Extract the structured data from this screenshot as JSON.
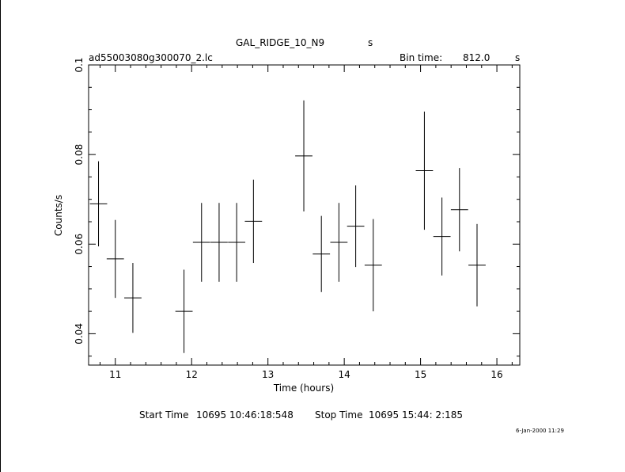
{
  "header": {
    "title": "GAL_RIDGE_10_N9",
    "title_unit": "s",
    "filename": "ad55003080g300070_2.lc",
    "bin_label": "Bin time:",
    "bin_value": "812.0",
    "bin_unit": "s"
  },
  "footer": {
    "start_label": "Start Time",
    "start_value": "10695 10:46:18:548",
    "stop_label": "Stop Time",
    "stop_value": "10695 15:44: 2:185",
    "timestamp": "6-Jan-2000 11:29"
  },
  "chart_data": {
    "type": "scatter",
    "xlabel": "Time (hours)",
    "ylabel": "Counts/s",
    "xlim": [
      10.65,
      16.3
    ],
    "ylim": [
      0.033,
      0.1
    ],
    "xticks": [
      11,
      12,
      13,
      14,
      15,
      16
    ],
    "yticks": [
      0.04,
      0.06,
      0.08,
      0.1
    ],
    "ytick_labels": [
      "0.04",
      "0.06",
      "0.08",
      "0.1"
    ],
    "x_minor_step": 0.2,
    "y_minor_step": 0.005,
    "grid": false,
    "points": [
      {
        "x": 10.78,
        "xerr": 0.113,
        "y": 0.069,
        "yerr_lo": 0.0095,
        "yerr_hi": 0.0095
      },
      {
        "x": 11.0,
        "xerr": 0.113,
        "y": 0.0567,
        "yerr_lo": 0.0087,
        "yerr_hi": 0.0087
      },
      {
        "x": 11.23,
        "xerr": 0.113,
        "y": 0.048,
        "yerr_lo": 0.0078,
        "yerr_hi": 0.0078
      },
      {
        "x": 11.9,
        "xerr": 0.113,
        "y": 0.045,
        "yerr_lo": 0.0093,
        "yerr_hi": 0.0093
      },
      {
        "x": 12.13,
        "xerr": 0.113,
        "y": 0.0604,
        "yerr_lo": 0.0088,
        "yerr_hi": 0.0088
      },
      {
        "x": 12.36,
        "xerr": 0.113,
        "y": 0.0604,
        "yerr_lo": 0.0088,
        "yerr_hi": 0.0088
      },
      {
        "x": 12.59,
        "xerr": 0.113,
        "y": 0.0604,
        "yerr_lo": 0.0088,
        "yerr_hi": 0.0088
      },
      {
        "x": 12.81,
        "xerr": 0.113,
        "y": 0.0651,
        "yerr_lo": 0.0093,
        "yerr_hi": 0.0093
      },
      {
        "x": 13.47,
        "xerr": 0.113,
        "y": 0.0797,
        "yerr_lo": 0.0124,
        "yerr_hi": 0.0124
      },
      {
        "x": 13.7,
        "xerr": 0.113,
        "y": 0.0578,
        "yerr_lo": 0.0085,
        "yerr_hi": 0.0085
      },
      {
        "x": 13.93,
        "xerr": 0.113,
        "y": 0.0604,
        "yerr_lo": 0.0088,
        "yerr_hi": 0.0088
      },
      {
        "x": 14.15,
        "xerr": 0.113,
        "y": 0.064,
        "yerr_lo": 0.0091,
        "yerr_hi": 0.0091
      },
      {
        "x": 14.38,
        "xerr": 0.113,
        "y": 0.0553,
        "yerr_lo": 0.0103,
        "yerr_hi": 0.0103
      },
      {
        "x": 15.05,
        "xerr": 0.113,
        "y": 0.0764,
        "yerr_lo": 0.0132,
        "yerr_hi": 0.0132
      },
      {
        "x": 15.28,
        "xerr": 0.113,
        "y": 0.0617,
        "yerr_lo": 0.0087,
        "yerr_hi": 0.0087
      },
      {
        "x": 15.51,
        "xerr": 0.113,
        "y": 0.0677,
        "yerr_lo": 0.0093,
        "yerr_hi": 0.0093
      },
      {
        "x": 15.74,
        "xerr": 0.113,
        "y": 0.0553,
        "yerr_lo": 0.0092,
        "yerr_hi": 0.0092
      }
    ]
  }
}
